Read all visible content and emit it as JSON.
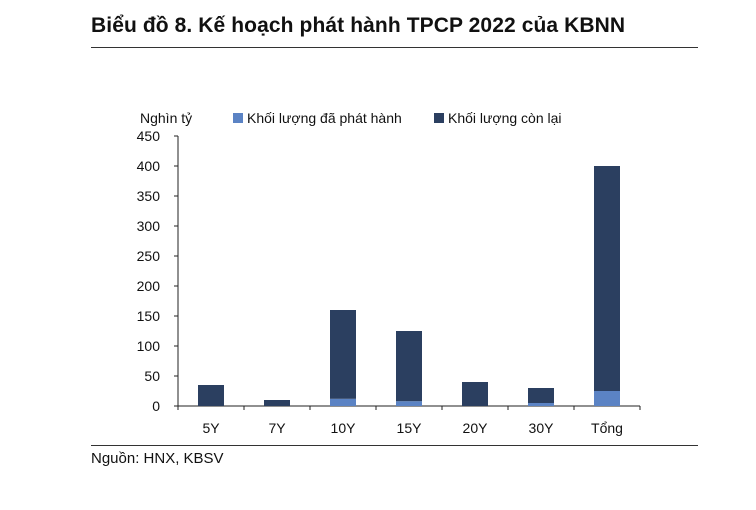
{
  "title": "Biểu đồ 8. Kế hoạch phát hành TPCP 2022 của KBNN",
  "source": "Nguồn: HNX, KBSV",
  "chart_data": {
    "type": "bar",
    "stacked": true,
    "ylabel": "Nghìn tỷ",
    "ylim": [
      0,
      450
    ],
    "yticks": [
      0,
      50,
      100,
      150,
      200,
      250,
      300,
      350,
      400,
      450
    ],
    "categories": [
      "5Y",
      "7Y",
      "10Y",
      "15Y",
      "20Y",
      "30Y",
      "Tổng"
    ],
    "series": [
      {
        "name": "Khối lượng đã phát hành",
        "color": "#5b83c4",
        "values": [
          0,
          0,
          12,
          8,
          0,
          5,
          25
        ]
      },
      {
        "name": "Khối lượng còn lại",
        "color": "#2b3f60",
        "values": [
          35,
          10,
          148,
          117,
          40,
          25,
          375
        ]
      }
    ],
    "legend_position": "top",
    "grid": false
  }
}
